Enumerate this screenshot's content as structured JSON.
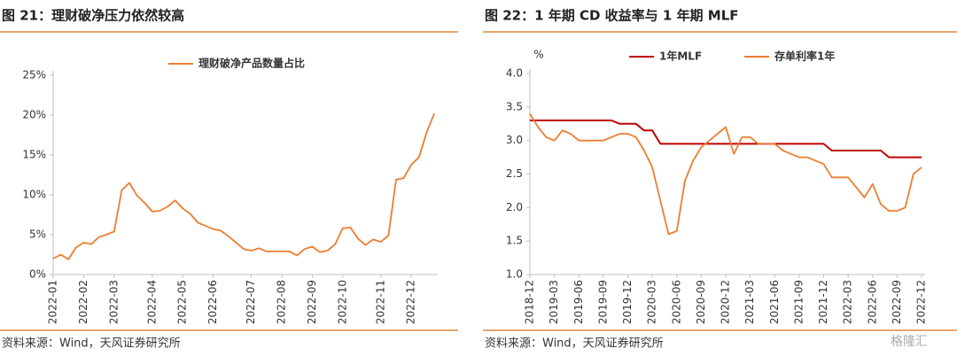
{
  "chart_data": [
    {
      "type": "line",
      "title": "图 21：理财破净压力依然较高",
      "categories": [
        "2022-01",
        null,
        null,
        null,
        "2022-02",
        null,
        null,
        null,
        "2022-03",
        null,
        null,
        null,
        null,
        "2022-04",
        null,
        null,
        null,
        "2022-05",
        null,
        null,
        null,
        "2022-06",
        null,
        null,
        null,
        null,
        "2022-07",
        null,
        null,
        null,
        "2022-08",
        null,
        null,
        null,
        "2022-09",
        null,
        null,
        null,
        "2022-10",
        null,
        null,
        null,
        null,
        "2022-11",
        null,
        null,
        null,
        "2022-12",
        null,
        null,
        null
      ],
      "series": [
        {
          "name": "理财破净产品数量占比",
          "color": "#ed7d31",
          "values": [
            2.0,
            2.5,
            1.9,
            3.4,
            4.0,
            3.8,
            4.7,
            5.0,
            5.4,
            10.6,
            11.5,
            9.9,
            9.0,
            7.9,
            8.0,
            8.5,
            9.3,
            8.3,
            7.6,
            6.5,
            6.1,
            5.7,
            5.5,
            4.8,
            4.0,
            3.2,
            3.0,
            3.3,
            2.9,
            2.9,
            2.9,
            2.9,
            2.4,
            3.2,
            3.5,
            2.8,
            3.0,
            3.8,
            5.8,
            5.9,
            4.5,
            3.7,
            4.4,
            4.1,
            4.9,
            11.9,
            12.1,
            13.8,
            14.7,
            17.8,
            20.2
          ]
        }
      ],
      "ylim": [
        0,
        25
      ],
      "yticks": [
        {
          "value": 0,
          "label": "0%"
        },
        {
          "value": 5,
          "label": "5%"
        },
        {
          "value": 10,
          "label": "10%"
        },
        {
          "value": 15,
          "label": "15%"
        },
        {
          "value": 20,
          "label": "20%"
        },
        {
          "value": 25,
          "label": "25%"
        }
      ],
      "grid": false,
      "source": "资料来源：Wind，天风证券研究所"
    },
    {
      "type": "line",
      "title": "图 22：1 年期 CD 收益率与 1 年期 MLF",
      "ylabel": "%",
      "categories": [
        "2018-12",
        null,
        null,
        "2019-03",
        null,
        null,
        "2019-06",
        null,
        null,
        "2019-09",
        null,
        null,
        "2019-12",
        null,
        null,
        "2020-03",
        null,
        null,
        "2020-06",
        null,
        null,
        "2020-09",
        null,
        null,
        "2020-12",
        null,
        null,
        "2021-03",
        null,
        null,
        "2021-06",
        null,
        null,
        "2021-09",
        null,
        null,
        "2021-12",
        null,
        null,
        "2022-03",
        null,
        null,
        "2022-06",
        null,
        null,
        "2022-09",
        null,
        null,
        "2022-12"
      ],
      "series": [
        {
          "name": "1年MLF",
          "color": "#c00000",
          "values": [
            3.3,
            3.3,
            3.3,
            3.3,
            3.3,
            3.3,
            3.3,
            3.3,
            3.3,
            3.3,
            3.3,
            3.25,
            3.25,
            3.25,
            3.15,
            3.15,
            2.95,
            2.95,
            2.95,
            2.95,
            2.95,
            2.95,
            2.95,
            2.95,
            2.95,
            2.95,
            2.95,
            2.95,
            2.95,
            2.95,
            2.95,
            2.95,
            2.95,
            2.95,
            2.95,
            2.95,
            2.95,
            2.85,
            2.85,
            2.85,
            2.85,
            2.85,
            2.85,
            2.85,
            2.75,
            2.75,
            2.75,
            2.75,
            2.75
          ]
        },
        {
          "name": "存单利率1年",
          "color": "#ed7d31",
          "values": [
            3.4,
            3.2,
            3.05,
            3.0,
            3.15,
            3.1,
            3.0,
            3.0,
            3.0,
            3.0,
            3.05,
            3.1,
            3.1,
            3.05,
            2.85,
            2.6,
            2.1,
            1.6,
            1.65,
            2.4,
            2.7,
            2.9,
            3.0,
            3.1,
            3.2,
            2.8,
            3.05,
            3.05,
            2.95,
            2.95,
            2.95,
            2.85,
            2.8,
            2.75,
            2.75,
            2.7,
            2.65,
            2.45,
            2.45,
            2.45,
            2.3,
            2.15,
            2.35,
            2.05,
            1.95,
            1.95,
            2.0,
            2.5,
            2.6
          ]
        }
      ],
      "ylim": [
        1.0,
        4.0
      ],
      "yticks": [
        {
          "value": 1.0,
          "label": "1.0"
        },
        {
          "value": 1.5,
          "label": "1.5"
        },
        {
          "value": 2.0,
          "label": "2.0"
        },
        {
          "value": 2.5,
          "label": "2.5"
        },
        {
          "value": 3.0,
          "label": "3.0"
        },
        {
          "value": 3.5,
          "label": "3.5"
        },
        {
          "value": 4.0,
          "label": "4.0"
        }
      ],
      "grid": false,
      "source": "资料来源：Wind，天风证券研究所"
    }
  ],
  "watermark": "格隆汇"
}
